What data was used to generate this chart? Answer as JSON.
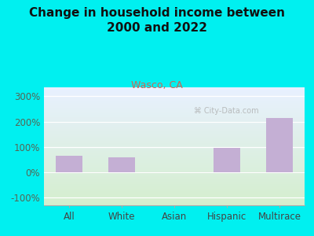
{
  "title": "Change in household income between\n2000 and 2022",
  "subtitle": "Wasco, CA",
  "categories": [
    "All",
    "White",
    "Asian",
    "Hispanic",
    "Multirace"
  ],
  "values": [
    65,
    60,
    0,
    97,
    213
  ],
  "bar_color": "#c4afd4",
  "background_outer": "#00f0f0",
  "background_inner_top": "#ddeeff",
  "background_inner_bottom": "#d4eece",
  "title_fontsize": 11,
  "subtitle_fontsize": 9,
  "subtitle_color": "#cc6655",
  "tick_label_fontsize": 8.5,
  "ytick_labels": [
    "-100%",
    "0%",
    "100%",
    "200%",
    "300%"
  ],
  "ytick_values": [
    -100,
    0,
    100,
    200,
    300
  ],
  "ylim": [
    -130,
    335
  ],
  "watermark": "City-Data.com",
  "ytick_color": "#556655"
}
